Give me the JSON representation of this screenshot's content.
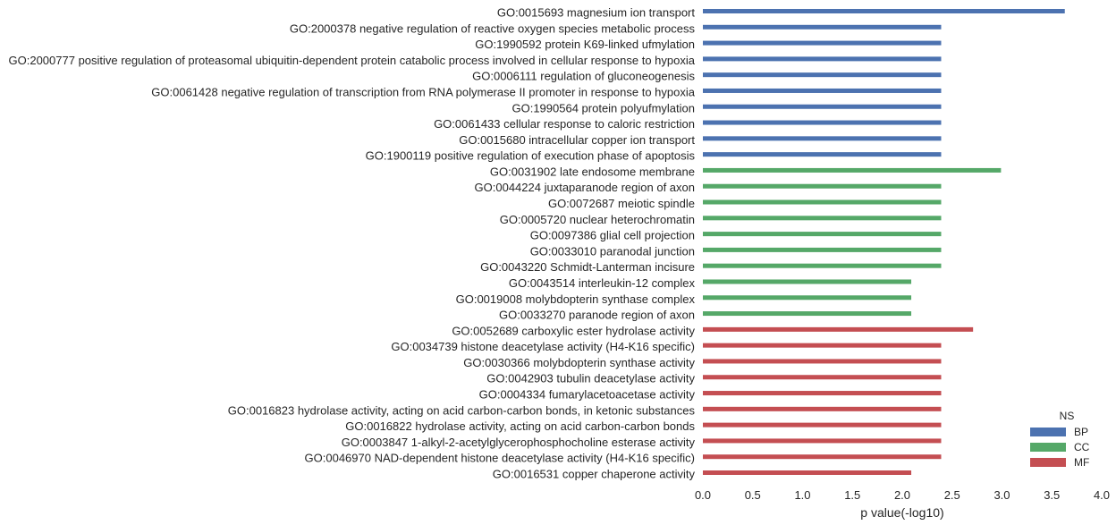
{
  "chart_data": {
    "type": "bar",
    "orientation": "horizontal",
    "xlabel": "p value(-log10)",
    "xlim": [
      0.0,
      4.0
    ],
    "xticks": [
      "0.0",
      "0.5",
      "1.0",
      "1.5",
      "2.0",
      "2.5",
      "3.0",
      "3.5",
      "4.0"
    ],
    "grid": false,
    "legend": {
      "title": "NS",
      "placement": "bottom-right",
      "entries": [
        {
          "name": "BP",
          "color": "#4c72b0"
        },
        {
          "name": "CC",
          "color": "#55a868"
        },
        {
          "name": "MF",
          "color": "#c44e52"
        }
      ]
    },
    "categories": [
      {
        "label": "GO:0015693 magnesium ion transport",
        "ns": "BP",
        "value": 3.63
      },
      {
        "label": "GO:2000378 negative regulation of reactive oxygen species metabolic process",
        "ns": "BP",
        "value": 2.39
      },
      {
        "label": "GO:1990592 protein K69-linked ufmylation",
        "ns": "BP",
        "value": 2.39
      },
      {
        "label": "GO:2000777 positive regulation of proteasomal ubiquitin-dependent protein catabolic process involved in cellular response to hypoxia",
        "ns": "BP",
        "value": 2.39
      },
      {
        "label": "GO:0006111 regulation of gluconeogenesis",
        "ns": "BP",
        "value": 2.39
      },
      {
        "label": "GO:0061428 negative regulation of transcription from RNA polymerase II promoter in response to hypoxia",
        "ns": "BP",
        "value": 2.39
      },
      {
        "label": "GO:1990564 protein polyufmylation",
        "ns": "BP",
        "value": 2.39
      },
      {
        "label": "GO:0061433 cellular response to caloric restriction",
        "ns": "BP",
        "value": 2.39
      },
      {
        "label": "GO:0015680 intracellular copper ion transport",
        "ns": "BP",
        "value": 2.39
      },
      {
        "label": "GO:1900119 positive regulation of execution phase of apoptosis",
        "ns": "BP",
        "value": 2.39
      },
      {
        "label": "GO:0031902 late endosome membrane",
        "ns": "CC",
        "value": 2.99
      },
      {
        "label": "GO:0044224 juxtaparanode region of axon",
        "ns": "CC",
        "value": 2.39
      },
      {
        "label": "GO:0072687 meiotic spindle",
        "ns": "CC",
        "value": 2.39
      },
      {
        "label": "GO:0005720 nuclear heterochromatin",
        "ns": "CC",
        "value": 2.39
      },
      {
        "label": "GO:0097386 glial cell projection",
        "ns": "CC",
        "value": 2.39
      },
      {
        "label": "GO:0033010 paranodal junction",
        "ns": "CC",
        "value": 2.39
      },
      {
        "label": "GO:0043220 Schmidt-Lanterman incisure",
        "ns": "CC",
        "value": 2.39
      },
      {
        "label": "GO:0043514 interleukin-12 complex",
        "ns": "CC",
        "value": 2.09
      },
      {
        "label": "GO:0019008 molybdopterin synthase complex",
        "ns": "CC",
        "value": 2.09
      },
      {
        "label": "GO:0033270 paranode region of axon",
        "ns": "CC",
        "value": 2.09
      },
      {
        "label": "GO:0052689 carboxylic ester hydrolase activity",
        "ns": "MF",
        "value": 2.71
      },
      {
        "label": "GO:0034739 histone deacetylase activity (H4-K16 specific)",
        "ns": "MF",
        "value": 2.39
      },
      {
        "label": "GO:0030366 molybdopterin synthase activity",
        "ns": "MF",
        "value": 2.39
      },
      {
        "label": "GO:0042903 tubulin deacetylase activity",
        "ns": "MF",
        "value": 2.39
      },
      {
        "label": "GO:0004334 fumarylacetoacetase activity",
        "ns": "MF",
        "value": 2.39
      },
      {
        "label": "GO:0016823 hydrolase activity, acting on acid carbon-carbon bonds, in ketonic substances",
        "ns": "MF",
        "value": 2.39
      },
      {
        "label": "GO:0016822 hydrolase activity, acting on acid carbon-carbon bonds",
        "ns": "MF",
        "value": 2.39
      },
      {
        "label": "GO:0003847 1-alkyl-2-acetylglycerophosphocholine esterase activity",
        "ns": "MF",
        "value": 2.39
      },
      {
        "label": "GO:0046970 NAD-dependent histone deacetylase activity (H4-K16 specific)",
        "ns": "MF",
        "value": 2.39
      },
      {
        "label": "GO:0016531 copper chaperone activity",
        "ns": "MF",
        "value": 2.09
      }
    ]
  }
}
